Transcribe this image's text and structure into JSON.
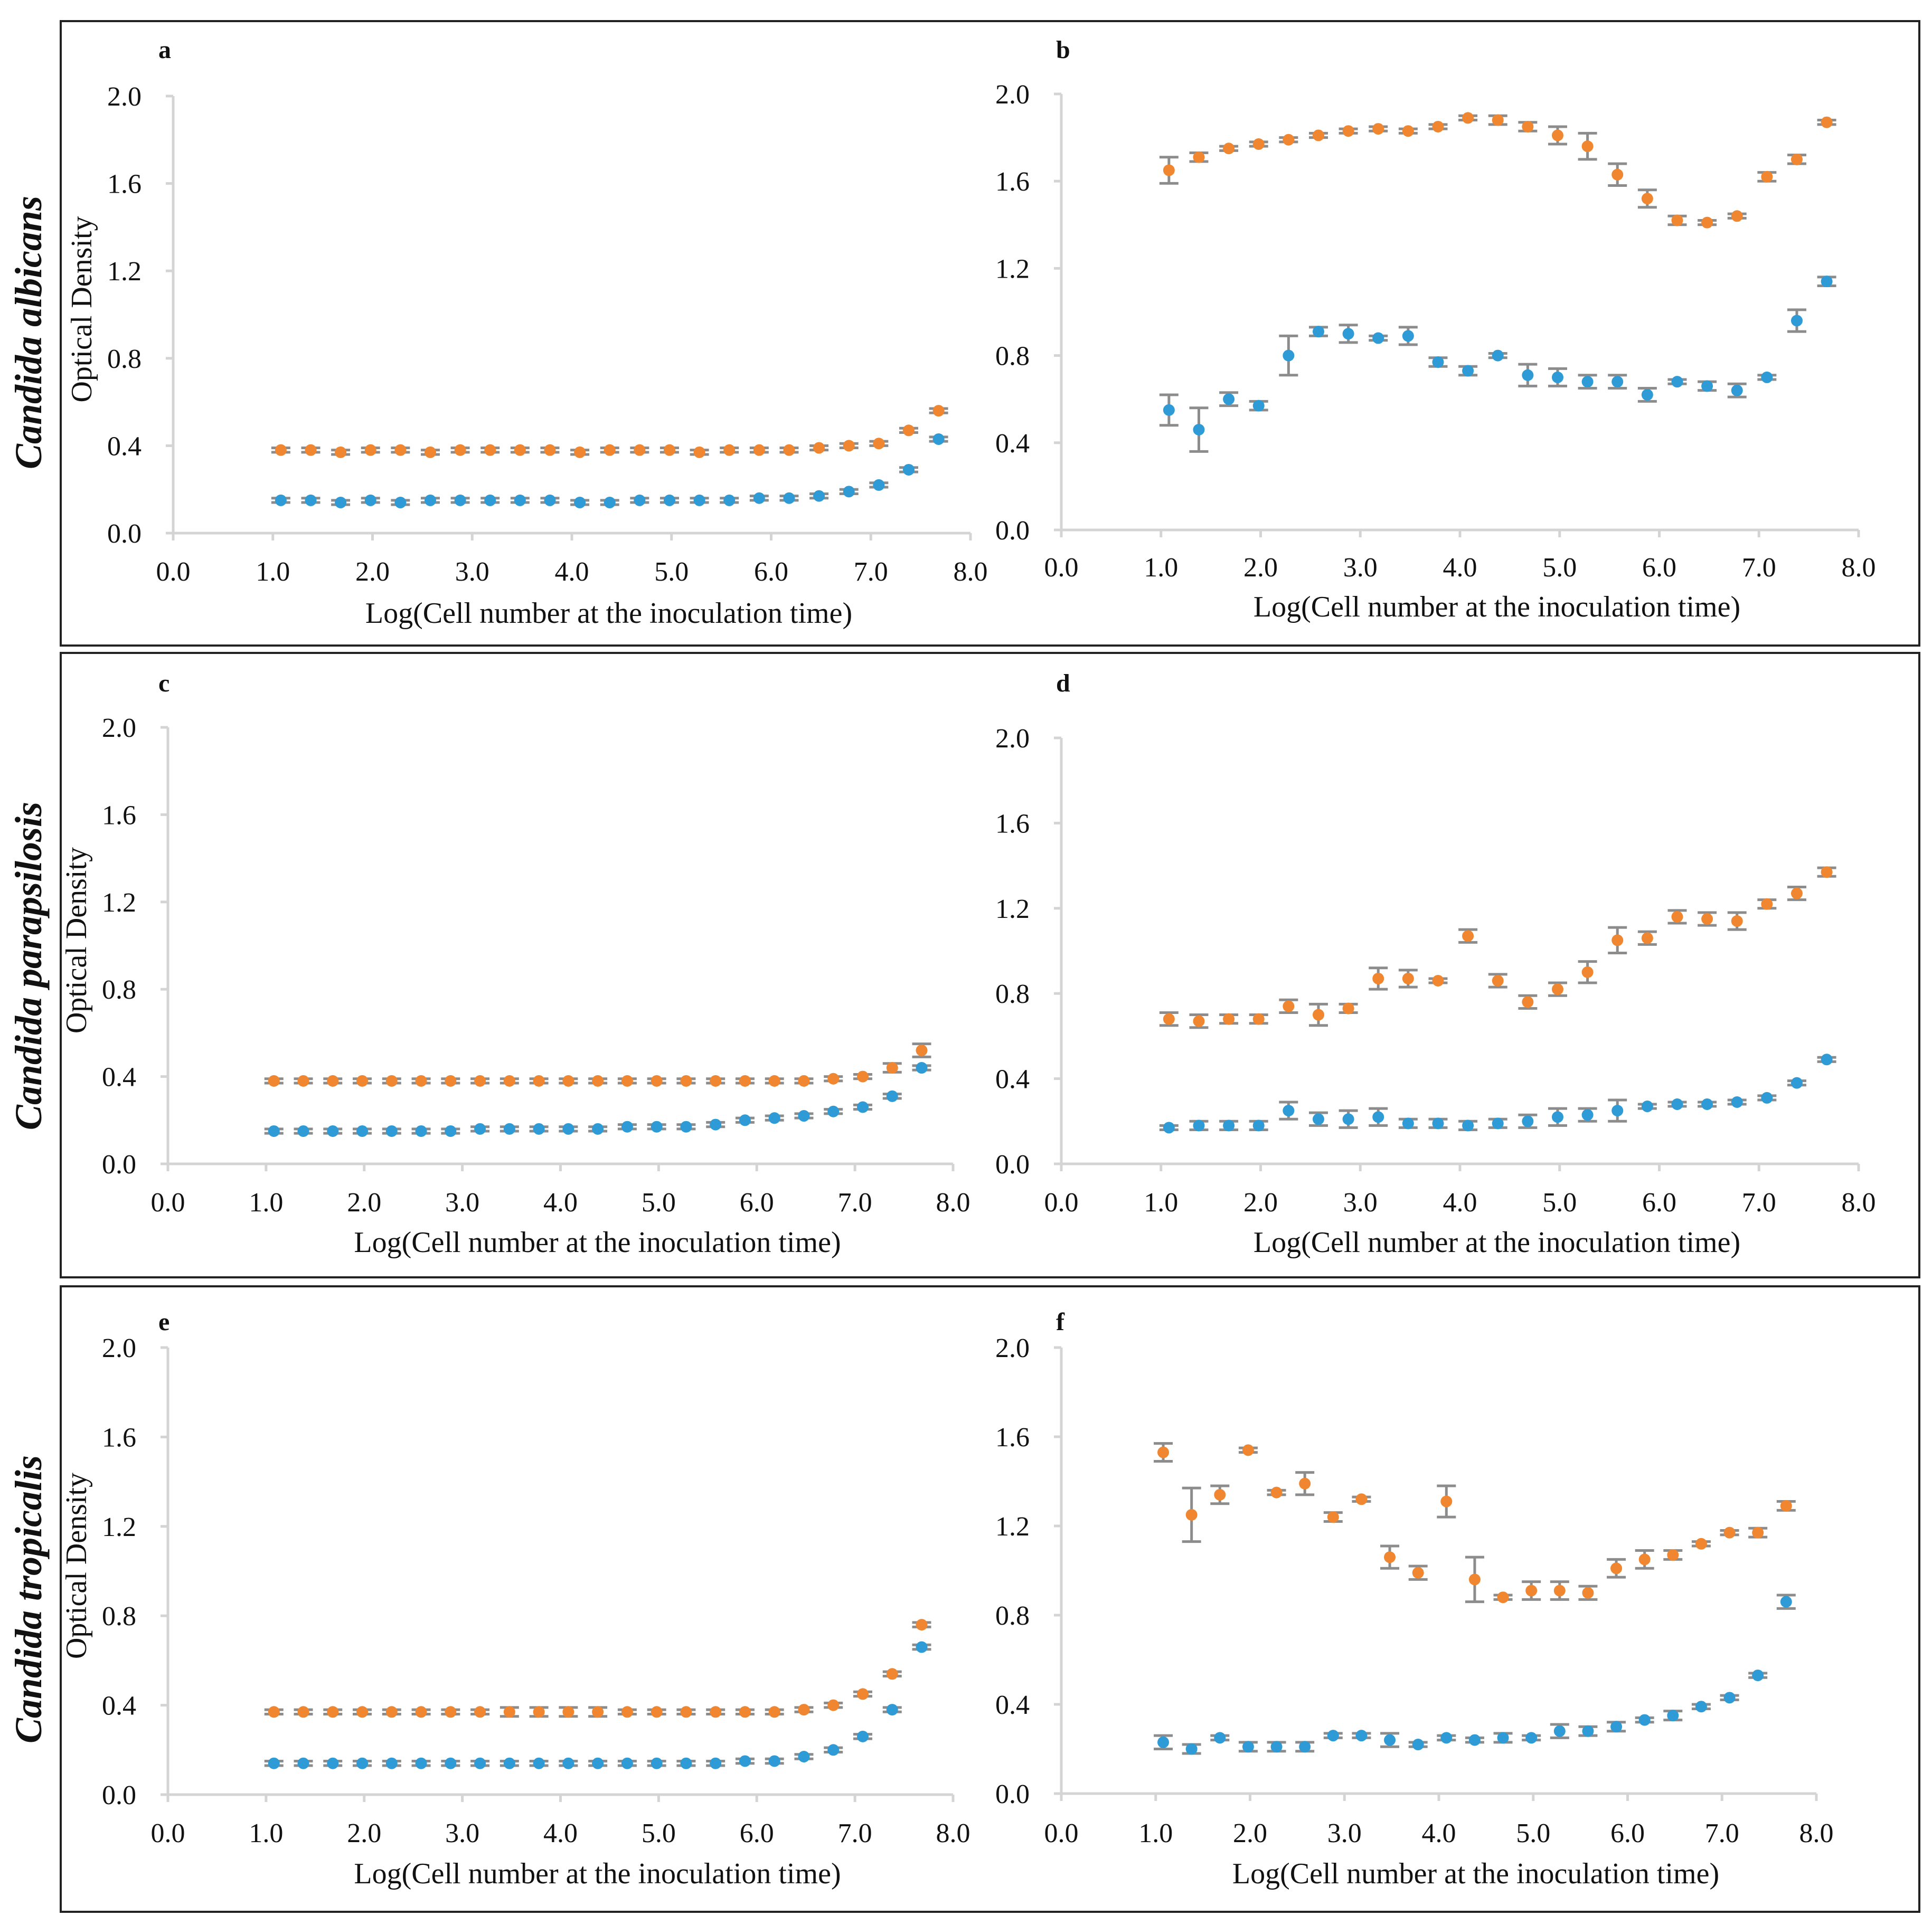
{
  "figure": {
    "rows": [
      {
        "species": "Candida albicans"
      },
      {
        "species": "Candida parapsilosis"
      },
      {
        "species": "Candida tropicalis"
      }
    ]
  },
  "colors": {
    "orange": "#F0862F",
    "blue": "#2E9BD6",
    "errorbar": "#8C8C8C",
    "axis": "#D4D4D4",
    "text": "#111111",
    "frame": "#222222"
  },
  "chart_data": [
    {
      "id": "a",
      "panel_label": "a",
      "type": "scatter",
      "ylabel": "Optical Density",
      "xlabel": "Log(Cell number at the inoculation time)",
      "xlim": [
        0,
        8
      ],
      "ylim": [
        0,
        2
      ],
      "xticks": [
        "0.0",
        "1.0",
        "2.0",
        "3.0",
        "4.0",
        "5.0",
        "6.0",
        "7.0",
        "8.0"
      ],
      "yticks": [
        "0.0",
        "0.4",
        "0.8",
        "1.2",
        "1.6",
        "2.0"
      ],
      "x": [
        1.08,
        1.38,
        1.68,
        1.98,
        2.28,
        2.58,
        2.88,
        3.18,
        3.48,
        3.78,
        4.08,
        4.38,
        4.68,
        4.98,
        5.28,
        5.58,
        5.88,
        6.18,
        6.48,
        6.78,
        7.08,
        7.38,
        7.68
      ],
      "series": [
        {
          "name": "orange",
          "color": "#F0862F",
          "values": [
            0.38,
            0.38,
            0.37,
            0.38,
            0.38,
            0.37,
            0.38,
            0.38,
            0.38,
            0.38,
            0.37,
            0.38,
            0.38,
            0.38,
            0.37,
            0.38,
            0.38,
            0.38,
            0.39,
            0.4,
            0.41,
            0.47,
            0.56
          ],
          "errors": [
            0.01,
            0.01,
            0.01,
            0.01,
            0.01,
            0.01,
            0.01,
            0.01,
            0.01,
            0.01,
            0.01,
            0.01,
            0.01,
            0.01,
            0.01,
            0.01,
            0.01,
            0.01,
            0.01,
            0.01,
            0.01,
            0.01,
            0.01
          ]
        },
        {
          "name": "blue",
          "color": "#2E9BD6",
          "values": [
            0.15,
            0.15,
            0.14,
            0.15,
            0.14,
            0.15,
            0.15,
            0.15,
            0.15,
            0.15,
            0.14,
            0.14,
            0.15,
            0.15,
            0.15,
            0.15,
            0.16,
            0.16,
            0.17,
            0.19,
            0.22,
            0.29,
            0.43
          ],
          "errors": [
            0.01,
            0.01,
            0.01,
            0.01,
            0.01,
            0.01,
            0.01,
            0.01,
            0.01,
            0.01,
            0.01,
            0.01,
            0.01,
            0.01,
            0.01,
            0.01,
            0.01,
            0.01,
            0.01,
            0.01,
            0.01,
            0.01,
            0.01
          ]
        }
      ]
    },
    {
      "id": "b",
      "panel_label": "b",
      "type": "scatter",
      "ylabel": "",
      "xlabel": "Log(Cell number at the inoculation time)",
      "xlim": [
        0,
        8
      ],
      "ylim": [
        0,
        2
      ],
      "xticks": [
        "0.0",
        "1.0",
        "2.0",
        "3.0",
        "4.0",
        "5.0",
        "6.0",
        "7.0",
        "8.0"
      ],
      "yticks": [
        "0.0",
        "0.4",
        "0.8",
        "1.2",
        "1.6",
        "2.0"
      ],
      "x": [
        1.08,
        1.38,
        1.68,
        1.98,
        2.28,
        2.58,
        2.88,
        3.18,
        3.48,
        3.78,
        4.08,
        4.38,
        4.68,
        4.98,
        5.28,
        5.58,
        5.88,
        6.18,
        6.48,
        6.78,
        7.08,
        7.38,
        7.68
      ],
      "series": [
        {
          "name": "orange",
          "color": "#F0862F",
          "values": [
            1.65,
            1.71,
            1.75,
            1.77,
            1.79,
            1.81,
            1.83,
            1.84,
            1.83,
            1.85,
            1.89,
            1.88,
            1.85,
            1.81,
            1.76,
            1.63,
            1.52,
            1.42,
            1.41,
            1.44,
            1.62,
            1.7,
            1.87
          ],
          "errors": [
            0.06,
            0.02,
            0.01,
            0.01,
            0.01,
            0.01,
            0.01,
            0.01,
            0.01,
            0.01,
            0.01,
            0.02,
            0.02,
            0.04,
            0.06,
            0.05,
            0.04,
            0.02,
            0.01,
            0.01,
            0.02,
            0.02,
            0.01
          ]
        },
        {
          "name": "blue",
          "color": "#2E9BD6",
          "values": [
            0.55,
            0.46,
            0.6,
            0.57,
            0.8,
            0.91,
            0.9,
            0.88,
            0.89,
            0.77,
            0.73,
            0.8,
            0.71,
            0.7,
            0.68,
            0.68,
            0.62,
            0.68,
            0.66,
            0.64,
            0.7,
            0.96,
            1.14
          ],
          "errors": [
            0.07,
            0.1,
            0.03,
            0.02,
            0.09,
            0.02,
            0.04,
            0.01,
            0.04,
            0.02,
            0.02,
            0.01,
            0.05,
            0.04,
            0.03,
            0.03,
            0.03,
            0.01,
            0.02,
            0.03,
            0.01,
            0.05,
            0.02
          ]
        }
      ]
    },
    {
      "id": "c",
      "panel_label": "c",
      "type": "scatter",
      "ylabel": "Optical Density",
      "xlabel": "Log(Cell number at the inoculation time)",
      "xlim": [
        0,
        8
      ],
      "ylim": [
        0,
        2
      ],
      "xticks": [
        "0.0",
        "1.0",
        "2.0",
        "3.0",
        "4.0",
        "5.0",
        "6.0",
        "7.0",
        "8.0"
      ],
      "yticks": [
        "0.0",
        "0.4",
        "0.8",
        "1.2",
        "1.6",
        "2.0"
      ],
      "x": [
        1.08,
        1.38,
        1.68,
        1.98,
        2.28,
        2.58,
        2.88,
        3.18,
        3.48,
        3.78,
        4.08,
        4.38,
        4.68,
        4.98,
        5.28,
        5.58,
        5.88,
        6.18,
        6.48,
        6.78,
        7.08,
        7.38,
        7.68
      ],
      "series": [
        {
          "name": "orange",
          "color": "#F0862F",
          "values": [
            0.38,
            0.38,
            0.38,
            0.38,
            0.38,
            0.38,
            0.38,
            0.38,
            0.38,
            0.38,
            0.38,
            0.38,
            0.38,
            0.38,
            0.38,
            0.38,
            0.38,
            0.38,
            0.38,
            0.39,
            0.4,
            0.44,
            0.52
          ],
          "errors": [
            0.01,
            0.01,
            0.01,
            0.01,
            0.01,
            0.01,
            0.01,
            0.01,
            0.01,
            0.01,
            0.01,
            0.01,
            0.01,
            0.01,
            0.01,
            0.01,
            0.01,
            0.01,
            0.01,
            0.01,
            0.01,
            0.02,
            0.03
          ]
        },
        {
          "name": "blue",
          "color": "#2E9BD6",
          "values": [
            0.15,
            0.15,
            0.15,
            0.15,
            0.15,
            0.15,
            0.15,
            0.16,
            0.16,
            0.16,
            0.16,
            0.16,
            0.17,
            0.17,
            0.17,
            0.18,
            0.2,
            0.21,
            0.22,
            0.24,
            0.26,
            0.31,
            0.44
          ],
          "errors": [
            0.01,
            0.01,
            0.01,
            0.01,
            0.01,
            0.01,
            0.01,
            0.01,
            0.01,
            0.01,
            0.01,
            0.01,
            0.01,
            0.01,
            0.01,
            0.01,
            0.01,
            0.01,
            0.01,
            0.01,
            0.01,
            0.01,
            0.01
          ]
        }
      ]
    },
    {
      "id": "d",
      "panel_label": "d",
      "type": "scatter",
      "ylabel": "",
      "xlabel": "Log(Cell number at the inoculation time)",
      "xlim": [
        0,
        8
      ],
      "ylim": [
        0,
        2
      ],
      "xticks": [
        "0.0",
        "1.0",
        "2.0",
        "3.0",
        "4.0",
        "5.0",
        "6.0",
        "7.0",
        "8.0"
      ],
      "yticks": [
        "0.0",
        "0.4",
        "0.8",
        "1.2",
        "1.6",
        "2.0"
      ],
      "x": [
        1.08,
        1.38,
        1.68,
        1.98,
        2.28,
        2.58,
        2.88,
        3.18,
        3.48,
        3.78,
        4.08,
        4.38,
        4.68,
        4.98,
        5.28,
        5.58,
        5.88,
        6.18,
        6.48,
        6.78,
        7.08,
        7.38,
        7.68
      ],
      "series": [
        {
          "name": "orange",
          "color": "#F0862F",
          "values": [
            0.68,
            0.67,
            0.68,
            0.68,
            0.74,
            0.7,
            0.73,
            0.87,
            0.87,
            0.86,
            1.07,
            0.86,
            0.76,
            0.82,
            0.9,
            1.05,
            1.06,
            1.16,
            1.15,
            1.14,
            1.22,
            1.27,
            1.37
          ],
          "errors": [
            0.03,
            0.03,
            0.02,
            0.02,
            0.03,
            0.05,
            0.02,
            0.05,
            0.04,
            0.01,
            0.03,
            0.03,
            0.03,
            0.03,
            0.05,
            0.06,
            0.03,
            0.03,
            0.03,
            0.04,
            0.02,
            0.03,
            0.02
          ]
        },
        {
          "name": "blue",
          "color": "#2E9BD6",
          "values": [
            0.17,
            0.18,
            0.18,
            0.18,
            0.25,
            0.21,
            0.21,
            0.22,
            0.19,
            0.19,
            0.18,
            0.19,
            0.2,
            0.22,
            0.23,
            0.25,
            0.27,
            0.28,
            0.28,
            0.29,
            0.31,
            0.38,
            0.49
          ],
          "errors": [
            0.01,
            0.02,
            0.02,
            0.02,
            0.04,
            0.03,
            0.04,
            0.04,
            0.02,
            0.02,
            0.02,
            0.02,
            0.03,
            0.04,
            0.03,
            0.05,
            0.01,
            0.01,
            0.01,
            0.01,
            0.01,
            0.01,
            0.01
          ]
        }
      ]
    },
    {
      "id": "e",
      "panel_label": "e",
      "type": "scatter",
      "ylabel": "Optical Density",
      "xlabel": "Log(Cell number at the inoculation time)",
      "xlim": [
        0,
        8
      ],
      "ylim": [
        0,
        2
      ],
      "xticks": [
        "0.0",
        "1.0",
        "2.0",
        "3.0",
        "4.0",
        "5.0",
        "6.0",
        "7.0",
        "8.0"
      ],
      "yticks": [
        "0.0",
        "0.4",
        "0.8",
        "1.2",
        "1.6",
        "2.0"
      ],
      "x": [
        1.08,
        1.38,
        1.68,
        1.98,
        2.28,
        2.58,
        2.88,
        3.18,
        3.48,
        3.78,
        4.08,
        4.38,
        4.68,
        4.98,
        5.28,
        5.58,
        5.88,
        6.18,
        6.48,
        6.78,
        7.08,
        7.38,
        7.68
      ],
      "series": [
        {
          "name": "orange",
          "color": "#F0862F",
          "values": [
            0.37,
            0.37,
            0.37,
            0.37,
            0.37,
            0.37,
            0.37,
            0.37,
            0.37,
            0.37,
            0.37,
            0.37,
            0.37,
            0.37,
            0.37,
            0.37,
            0.37,
            0.37,
            0.38,
            0.4,
            0.45,
            0.54,
            0.76
          ],
          "errors": [
            0.01,
            0.01,
            0.01,
            0.01,
            0.01,
            0.01,
            0.01,
            0.01,
            0.02,
            0.02,
            0.02,
            0.02,
            0.01,
            0.01,
            0.01,
            0.01,
            0.01,
            0.01,
            0.01,
            0.01,
            0.01,
            0.01,
            0.01
          ]
        },
        {
          "name": "blue",
          "color": "#2E9BD6",
          "values": [
            0.14,
            0.14,
            0.14,
            0.14,
            0.14,
            0.14,
            0.14,
            0.14,
            0.14,
            0.14,
            0.14,
            0.14,
            0.14,
            0.14,
            0.14,
            0.14,
            0.15,
            0.15,
            0.17,
            0.2,
            0.26,
            0.38,
            0.66
          ],
          "errors": [
            0.01,
            0.01,
            0.01,
            0.01,
            0.01,
            0.01,
            0.01,
            0.01,
            0.01,
            0.01,
            0.01,
            0.01,
            0.01,
            0.01,
            0.01,
            0.01,
            0.01,
            0.01,
            0.01,
            0.01,
            0.01,
            0.01,
            0.01
          ]
        }
      ]
    },
    {
      "id": "f",
      "panel_label": "f",
      "type": "scatter",
      "ylabel": "",
      "xlabel": "Log(Cell number at the inoculation time)",
      "xlim": [
        0,
        8
      ],
      "ylim": [
        0,
        2
      ],
      "xticks": [
        "0.0",
        "1.0",
        "2.0",
        "3.0",
        "4.0",
        "5.0",
        "6.0",
        "7.0",
        "8.0"
      ],
      "yticks": [
        "0.0",
        "0.4",
        "0.8",
        "1.2",
        "1.6",
        "2.0"
      ],
      "x": [
        1.08,
        1.38,
        1.68,
        1.98,
        2.28,
        2.58,
        2.88,
        3.18,
        3.48,
        3.78,
        4.08,
        4.38,
        4.68,
        4.98,
        5.28,
        5.58,
        5.88,
        6.18,
        6.48,
        6.78,
        7.08,
        7.38,
        7.68
      ],
      "series": [
        {
          "name": "orange",
          "color": "#F0862F",
          "values": [
            1.53,
            1.25,
            1.34,
            1.54,
            1.35,
            1.39,
            1.24,
            1.32,
            1.06,
            0.99,
            1.31,
            0.96,
            0.88,
            0.91,
            0.91,
            0.9,
            1.01,
            1.05,
            1.07,
            1.12,
            1.17,
            1.17,
            1.29
          ],
          "errors": [
            0.04,
            0.12,
            0.04,
            0.01,
            0.01,
            0.05,
            0.02,
            0.01,
            0.05,
            0.03,
            0.07,
            0.1,
            0.01,
            0.04,
            0.04,
            0.03,
            0.04,
            0.04,
            0.02,
            0.01,
            0.01,
            0.02,
            0.02
          ]
        },
        {
          "name": "blue",
          "color": "#2E9BD6",
          "values": [
            0.23,
            0.2,
            0.25,
            0.21,
            0.21,
            0.21,
            0.26,
            0.26,
            0.24,
            0.22,
            0.25,
            0.24,
            0.25,
            0.25,
            0.28,
            0.28,
            0.3,
            0.33,
            0.35,
            0.39,
            0.43,
            0.53,
            0.86
          ],
          "errors": [
            0.03,
            0.02,
            0.01,
            0.02,
            0.02,
            0.02,
            0.01,
            0.01,
            0.03,
            0.01,
            0.01,
            0.01,
            0.02,
            0.01,
            0.03,
            0.02,
            0.02,
            0.01,
            0.02,
            0.01,
            0.01,
            0.01,
            0.03
          ]
        }
      ]
    }
  ]
}
